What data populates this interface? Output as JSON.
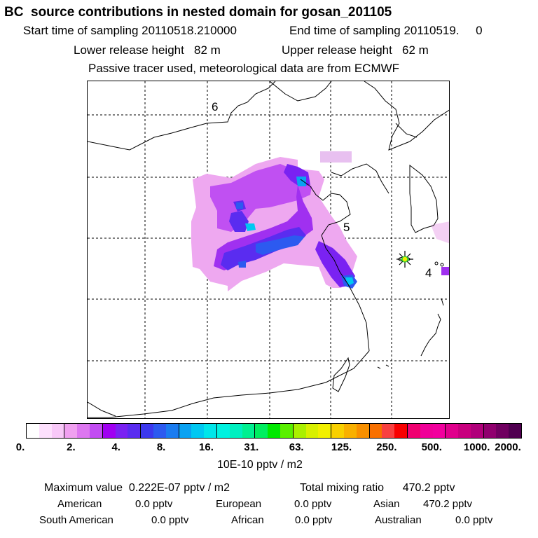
{
  "header": {
    "title": "BC  source contributions in nested domain for gosan_201105",
    "start_time": "Start time of sampling 20110518.210000",
    "end_time": "End time of sampling 20110519.     0",
    "lower_release": "Lower release height   82 m",
    "upper_release": "Upper release height   62 m",
    "tracer_note": "Passive tracer used, meteorological data are from ECMWF"
  },
  "map": {
    "labels": [
      "6",
      "5",
      "4"
    ],
    "receptor_icon": "star-marker-icon",
    "receptor_color": "#33cc33"
  },
  "colorbar": {
    "colors": [
      "#ffffff",
      "#fde0fd",
      "#f8c8f8",
      "#f0a0f0",
      "#dd77f0",
      "#c24cf2",
      "#a000f2",
      "#7a22f2",
      "#5a2cf0",
      "#3c38ee",
      "#2c5af0",
      "#1a7cf0",
      "#0aa2f2",
      "#00c8f2",
      "#00e6ea",
      "#00f2e0",
      "#00f0c0",
      "#00f090",
      "#00ee60",
      "#00e800",
      "#5af000",
      "#aaf000",
      "#d8f000",
      "#f2f000",
      "#f8d000",
      "#f8b000",
      "#f89000",
      "#f87000",
      "#f84040",
      "#f80000",
      "#f00070",
      "#f00098",
      "#f2009e",
      "#e0008c",
      "#c8007e",
      "#b0007a",
      "#90006e",
      "#700060",
      "#500050"
    ],
    "tick_labels": [
      "0.",
      "2.",
      "4.",
      "8.",
      "16.",
      "31.",
      "63.",
      "125.",
      "250.",
      "500.",
      "1000.",
      "2000."
    ],
    "units": "10E-10 pptv / m2"
  },
  "stats": {
    "maximum": "Maximum value  0.222E-07 pptv / m2",
    "total": "Total mixing ratio      470.2 pptv",
    "american": "American",
    "american_val": "0.0 pptv",
    "european": "European",
    "european_val": "0.0 pptv",
    "asian": "Asian",
    "asian_val": "470.2 pptv",
    "south_american": "South American",
    "south_american_val": "0.0 pptv",
    "african": "African",
    "african_val": "0.0 pptv",
    "australian": "Australian",
    "australian_val": "0.0 pptv"
  }
}
